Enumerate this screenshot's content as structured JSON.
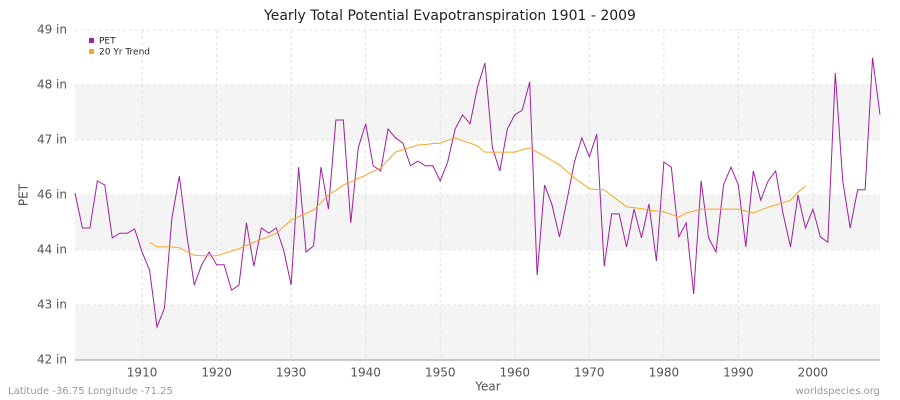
{
  "chart_data": {
    "type": "line",
    "title": "Yearly Total Potential Evapotranspiration 1901 - 2009",
    "y_label": "PET",
    "x_label": "Year",
    "footer_left": "Latitude -36.75 Longitude -71.25",
    "footer_right": "worldspecies.org",
    "legend": "top-left",
    "grid": true,
    "x": [
      1901,
      1902,
      1903,
      1904,
      1905,
      1906,
      1907,
      1908,
      1909,
      1910,
      1911,
      1912,
      1913,
      1914,
      1915,
      1916,
      1917,
      1918,
      1919,
      1920,
      1921,
      1922,
      1923,
      1924,
      1925,
      1926,
      1927,
      1928,
      1929,
      1930,
      1931,
      1932,
      1933,
      1934,
      1935,
      1936,
      1937,
      1938,
      1939,
      1940,
      1941,
      1942,
      1943,
      1944,
      1945,
      1946,
      1947,
      1948,
      1949,
      1950,
      1951,
      1952,
      1953,
      1954,
      1955,
      1956,
      1957,
      1958,
      1959,
      1960,
      1961,
      1962,
      1963,
      1964,
      1965,
      1966,
      1967,
      1968,
      1969,
      1970,
      1971,
      1972,
      1973,
      1974,
      1975,
      1976,
      1977,
      1978,
      1979,
      1980,
      1981,
      1982,
      1983,
      1984,
      1985,
      1986,
      1987,
      1988,
      1989,
      1990,
      1991,
      1992,
      1993,
      1994,
      1995,
      1996,
      1997,
      1998,
      1999,
      2000,
      2001,
      2002,
      2003,
      2004,
      2005,
      2006,
      2007,
      2008,
      2009
    ],
    "series": [
      {
        "name": "PET",
        "color": "#a020a0",
        "values": [
          45.54,
          44.8,
          44.8,
          45.8,
          45.71,
          44.59,
          44.69,
          44.69,
          44.78,
          44.29,
          43.91,
          42.7,
          43.1,
          45.01,
          45.9,
          44.65,
          43.59,
          44.02,
          44.29,
          44.02,
          44.02,
          43.48,
          43.59,
          44.91,
          43.99,
          44.8,
          44.69,
          44.8,
          44.33,
          43.59,
          46.09,
          44.29,
          44.42,
          46.09,
          45.2,
          47.09,
          47.09,
          44.91,
          46.5,
          47.01,
          46.12,
          46.01,
          46.9,
          46.71,
          46.6,
          46.12,
          46.22,
          46.12,
          46.12,
          45.8,
          46.2,
          46.9,
          47.2,
          47.01,
          47.79,
          48.3,
          46.5,
          46.01,
          46.9,
          47.2,
          47.3,
          47.9,
          43.8,
          45.71,
          45.29,
          44.61,
          45.39,
          46.2,
          46.71,
          46.31,
          46.79,
          43.99,
          45.1,
          45.1,
          44.4,
          45.2,
          44.59,
          45.31,
          44.1,
          46.2,
          46.09,
          44.61,
          44.91,
          43.4,
          45.8,
          44.59,
          44.29,
          45.71,
          46.09,
          45.71,
          44.4,
          46.01,
          45.39,
          45.8,
          46.01,
          45.1,
          44.4,
          45.5,
          44.8,
          45.2,
          44.61,
          44.5,
          48.09,
          45.8,
          44.8,
          45.61,
          45.61,
          48.41,
          47.2
        ]
      },
      {
        "name": "20 Yr Trend",
        "color": "#f5a623",
        "values": [
          null,
          null,
          null,
          null,
          null,
          null,
          null,
          null,
          null,
          null,
          44.5,
          44.4,
          44.4,
          44.4,
          44.38,
          44.3,
          44.22,
          44.21,
          44.21,
          44.21,
          44.26,
          44.31,
          44.36,
          44.43,
          44.5,
          44.56,
          44.62,
          44.69,
          44.83,
          44.97,
          45.04,
          45.11,
          45.18,
          45.34,
          45.5,
          45.6,
          45.71,
          45.78,
          45.85,
          45.92,
          46.0,
          46.07,
          46.24,
          46.41,
          46.46,
          46.51,
          46.56,
          46.57,
          46.59,
          46.6,
          46.66,
          46.71,
          46.65,
          46.6,
          46.54,
          46.41,
          46.41,
          46.41,
          46.41,
          46.41,
          46.46,
          46.5,
          46.41,
          46.32,
          46.23,
          46.14,
          46.0,
          45.86,
          45.75,
          45.63,
          45.62,
          45.61,
          45.49,
          45.37,
          45.25,
          45.23,
          45.21,
          45.18,
          45.16,
          45.14,
          45.09,
          45.03,
          45.12,
          45.16,
          45.2,
          45.2,
          45.2,
          45.2,
          45.2,
          45.2,
          45.16,
          45.12,
          45.18,
          45.24,
          45.29,
          45.34,
          45.39,
          45.56,
          45.69,
          null,
          null,
          null,
          null,
          null,
          null,
          null,
          null,
          null,
          null
        ]
      }
    ],
    "xlim": [
      1901,
      2009
    ],
    "xticks": [
      1910,
      1920,
      1930,
      1940,
      1950,
      1960,
      1970,
      1980,
      1990,
      2000
    ],
    "ylim": [
      42,
      49
    ],
    "yticks": [
      {
        "value": 42,
        "label": "42 in"
      },
      {
        "value": 43.1667,
        "label": "43 in"
      },
      {
        "value": 44.3333,
        "label": "44 in"
      },
      {
        "value": 45.5,
        "label": "46 in"
      },
      {
        "value": 46.6667,
        "label": "47 in"
      },
      {
        "value": 47.8333,
        "label": "48 in"
      },
      {
        "value": 49,
        "label": "49 in"
      }
    ]
  }
}
